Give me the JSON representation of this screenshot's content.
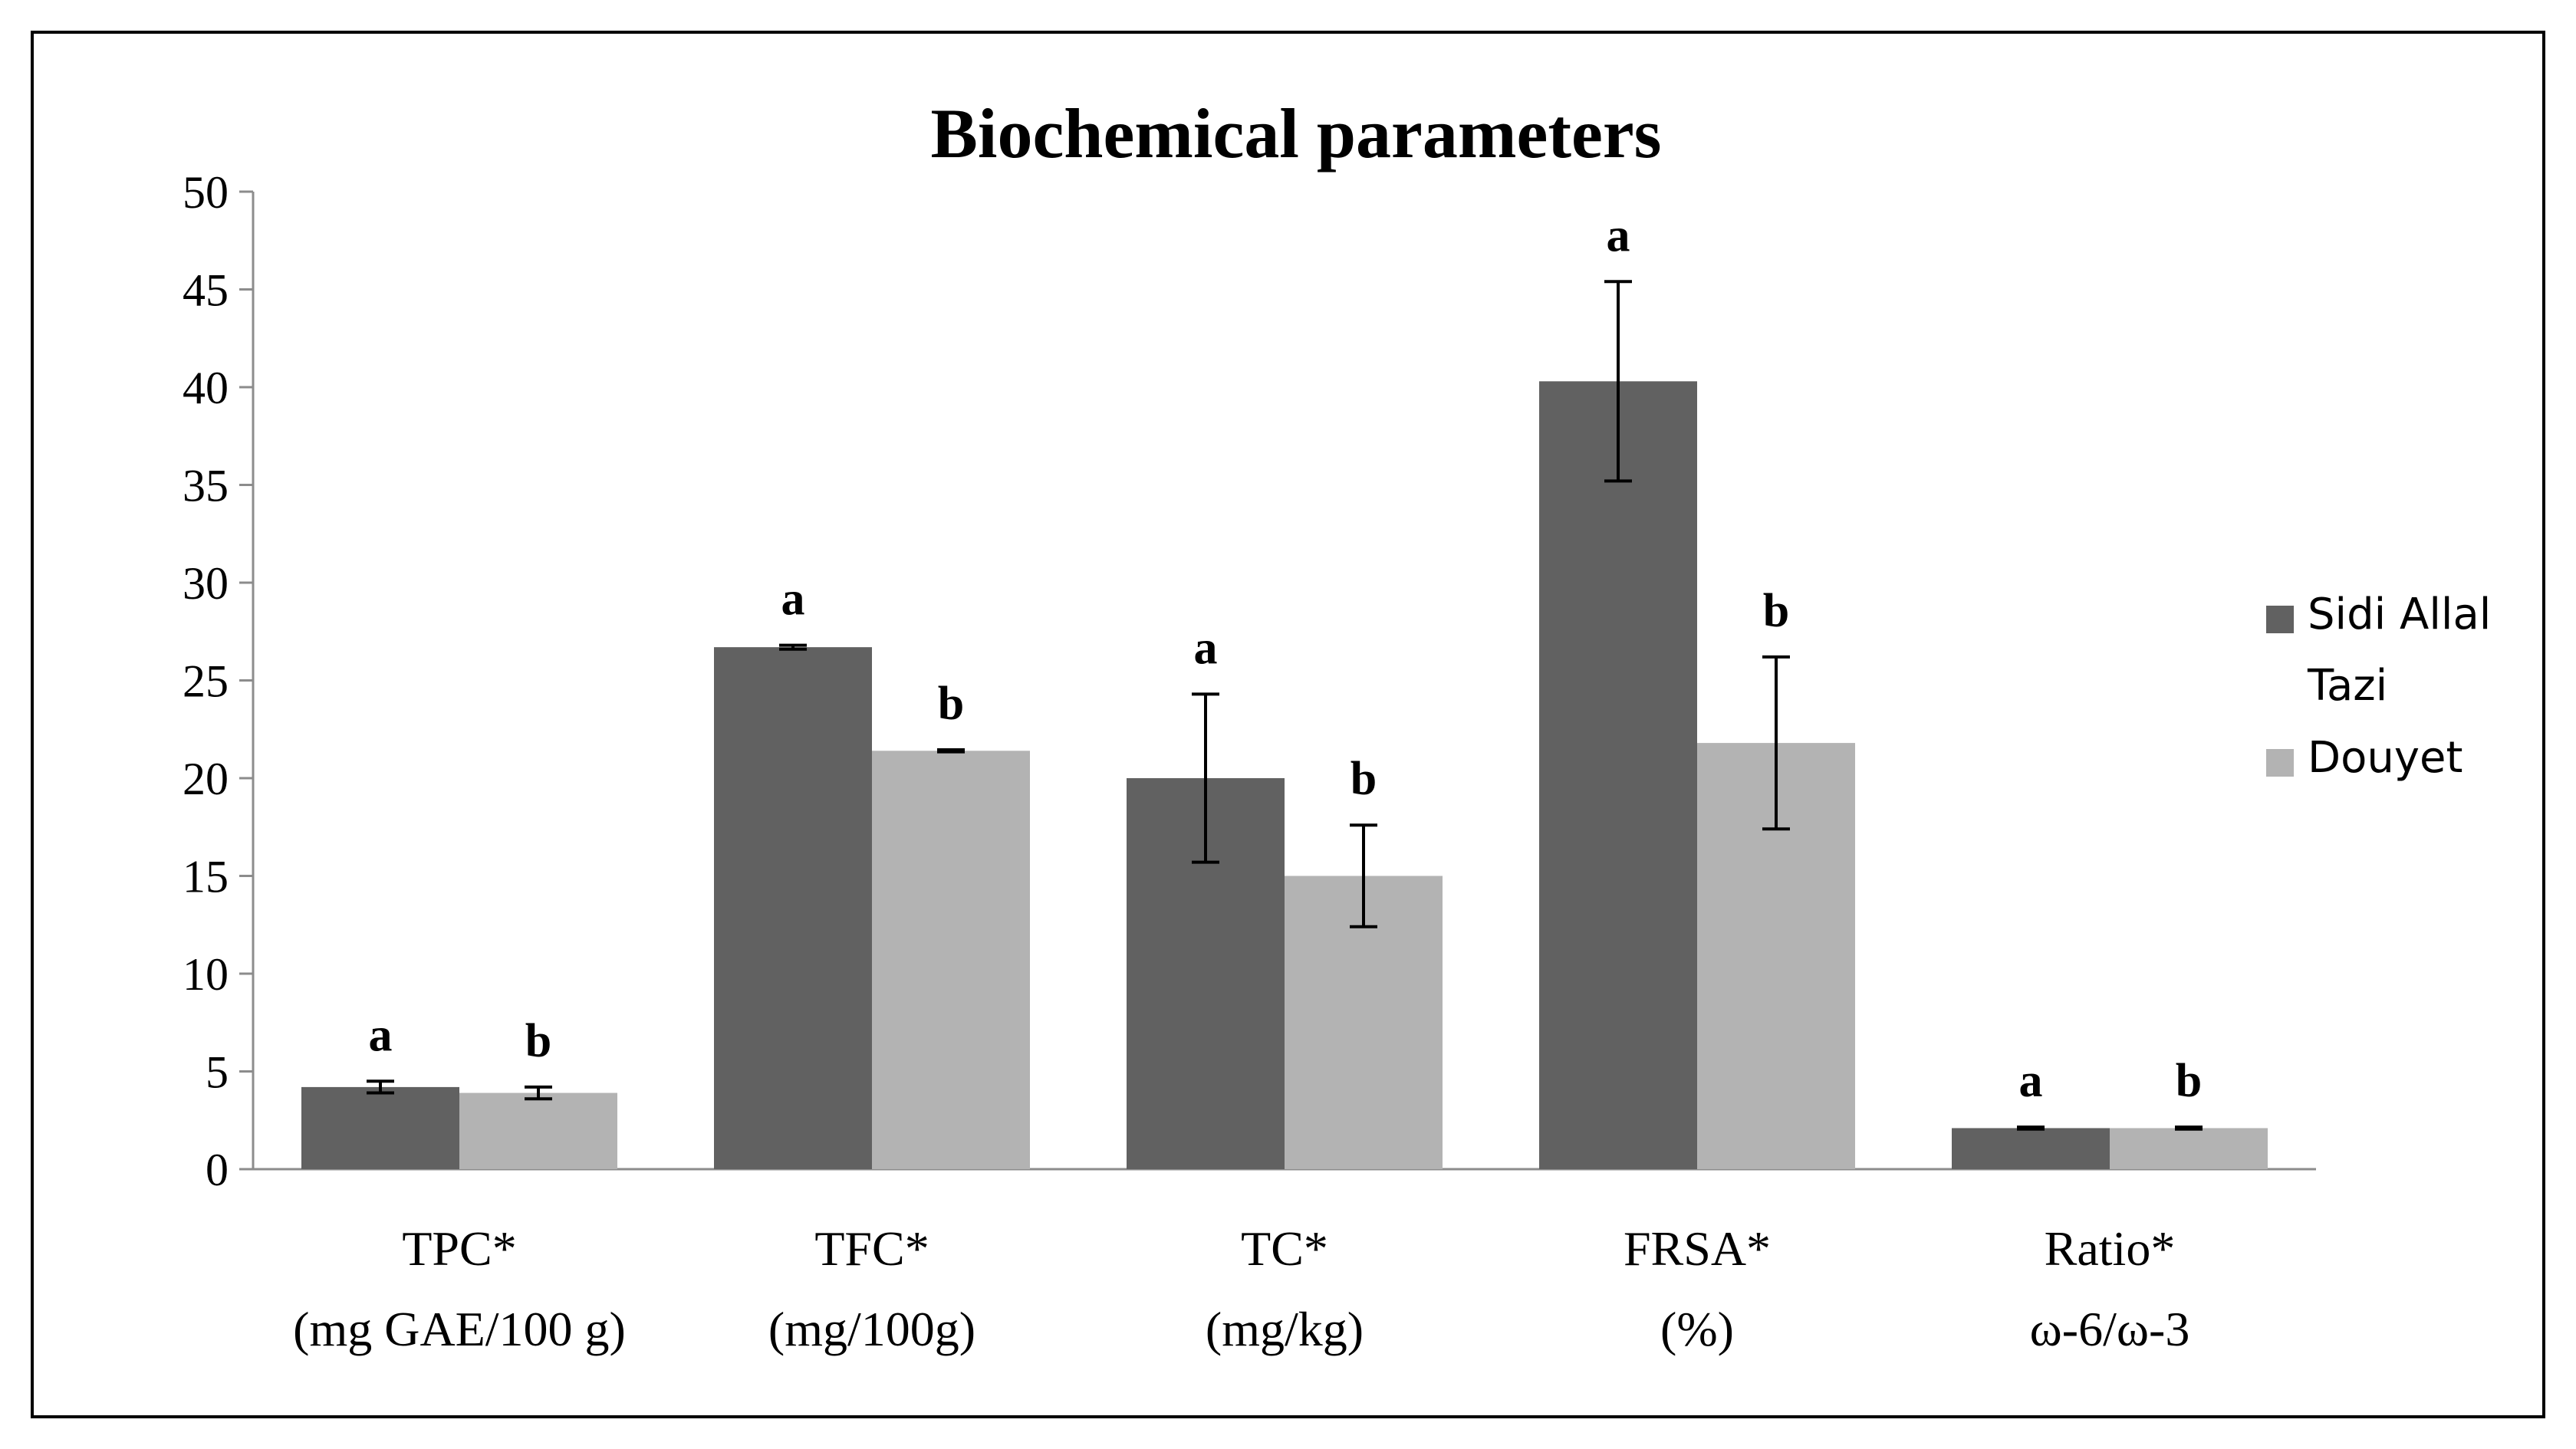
{
  "chart_data": {
    "type": "bar",
    "title": "Biochemical parameters",
    "xlabel": "",
    "ylabel": "",
    "ylim": [
      0,
      50
    ],
    "yticks": [
      0,
      5,
      10,
      15,
      20,
      25,
      30,
      35,
      40,
      45,
      50
    ],
    "grid": false,
    "legend_position": "right",
    "categories": [
      {
        "line1": "TPC*",
        "line2": "(mg GAE/100 g)"
      },
      {
        "line1": "TFC*",
        "line2": "(mg/100g)"
      },
      {
        "line1": "TC*",
        "line2": "(mg/kg)"
      },
      {
        "line1": "FRSA*",
        "line2": "(%)"
      },
      {
        "line1": "Ratio*",
        "line2": "ω-6/ω-3"
      }
    ],
    "series": [
      {
        "name_line1": "Sidi Allal",
        "name_line2": "Tazi",
        "color": "#616161",
        "values": [
          4.2,
          26.7,
          20.0,
          40.3,
          2.1
        ],
        "errors": [
          0.3,
          0.1,
          4.3,
          5.1,
          0.05
        ],
        "letters": [
          "a",
          "a",
          "a",
          "a",
          "a"
        ]
      },
      {
        "name_line1": "Douyet",
        "name_line2": "",
        "color": "#b3b3b3",
        "values": [
          3.9,
          21.4,
          15.0,
          21.8,
          2.1
        ],
        "errors": [
          0.3,
          0.05,
          2.6,
          4.4,
          0.05
        ],
        "letters": [
          "b",
          "b",
          "b",
          "b",
          "b"
        ]
      }
    ]
  }
}
